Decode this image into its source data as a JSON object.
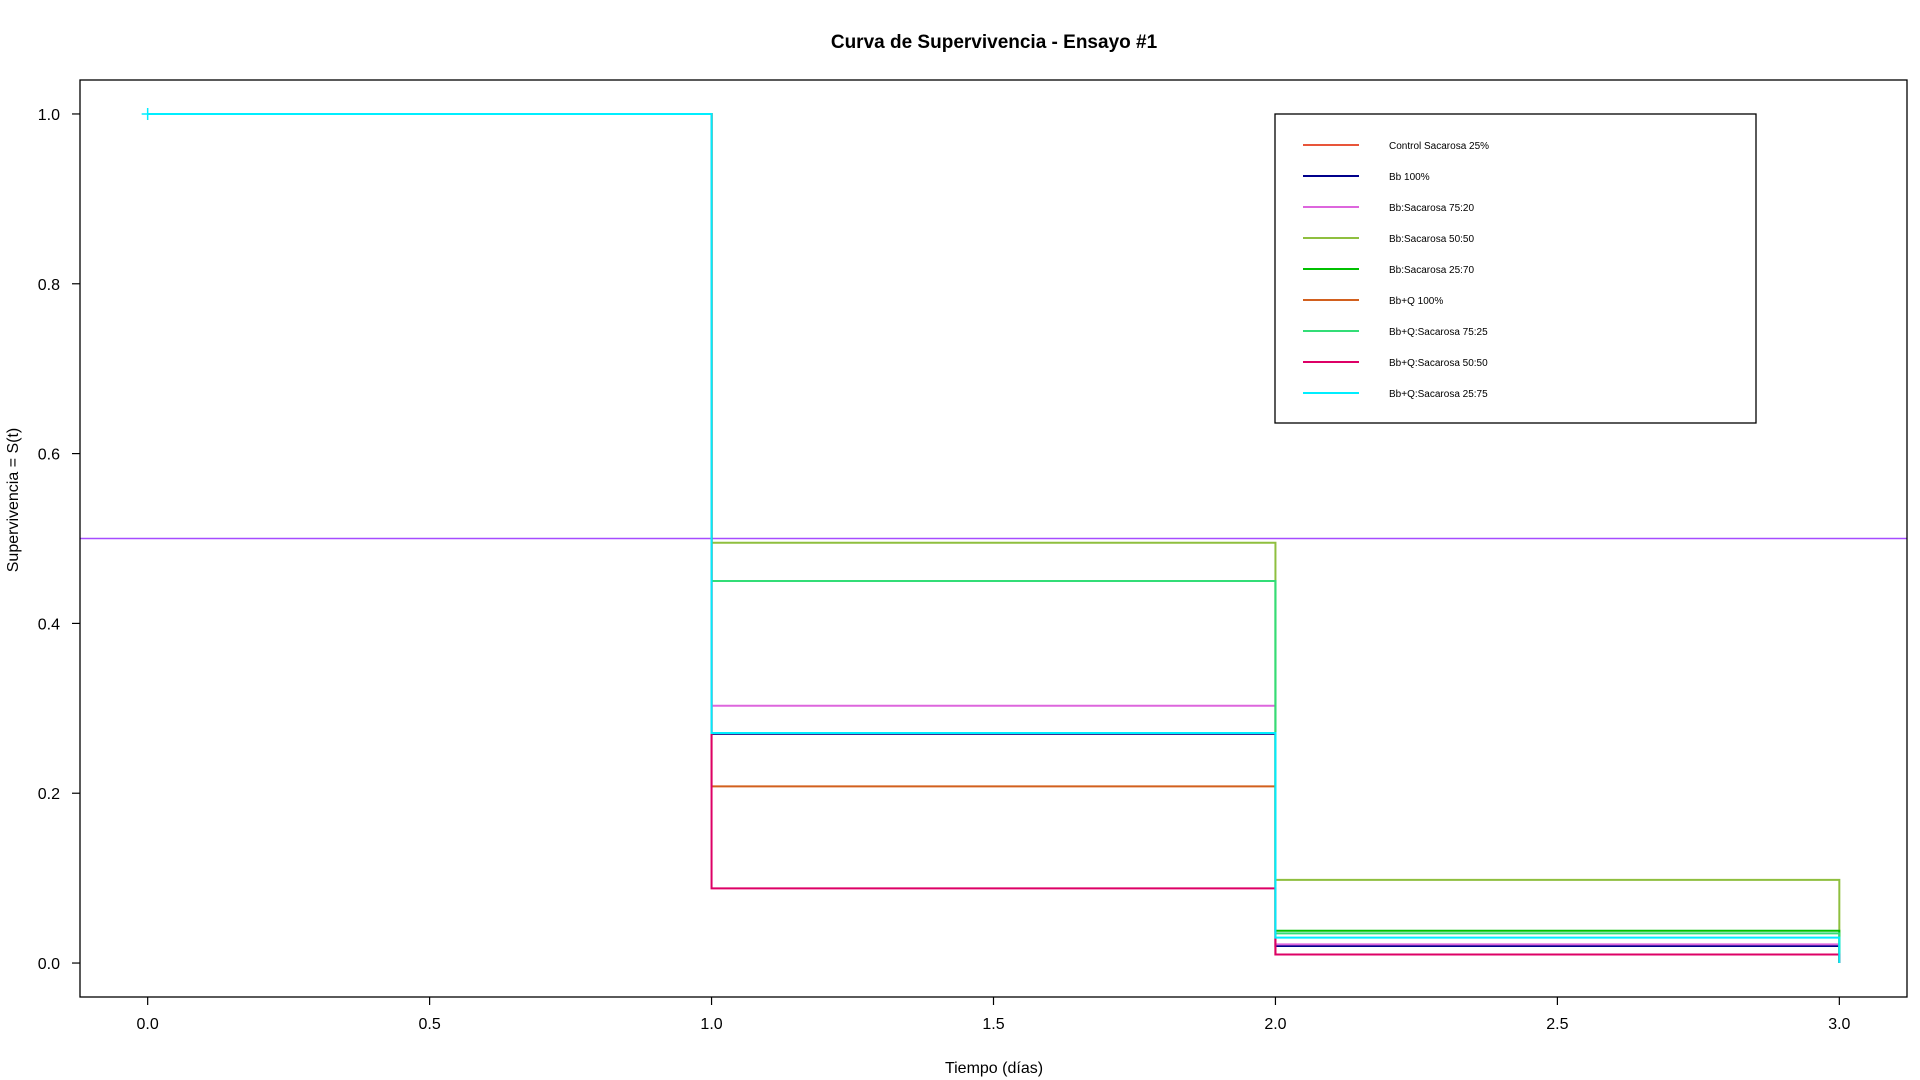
{
  "chart_data": {
    "type": "line",
    "step": true,
    "title": "Curva de Supervivencia - Ensayo #1",
    "xlabel": "Tiempo (días)",
    "ylabel": "Supervivencia = S(t)",
    "xlim": [
      -0.12,
      3.12
    ],
    "ylim": [
      -0.04,
      1.04
    ],
    "xticks": [
      0.0,
      0.5,
      1.0,
      1.5,
      2.0,
      2.5,
      3.0
    ],
    "xtick_labels": [
      "0.0",
      "0.5",
      "1.0",
      "1.5",
      "2.0",
      "2.5",
      "3.0"
    ],
    "yticks": [
      0.0,
      0.2,
      0.4,
      0.6,
      0.8,
      1.0
    ],
    "ytick_labels": [
      "0.0",
      "0.2",
      "0.4",
      "0.6",
      "0.8",
      "1.0"
    ],
    "grid": false,
    "legend_position": "top-right",
    "reference_line": {
      "y": 0.5,
      "color": "#a64dff"
    },
    "series": [
      {
        "name": "Control  Sacarosa 25%",
        "color": "#e8553a",
        "x": [
          0,
          1,
          2,
          3
        ],
        "y": [
          1.0,
          0.27,
          0.01,
          0.01
        ]
      },
      {
        "name": "Bb 100%",
        "color": "#00008b",
        "x": [
          0,
          1,
          2,
          3
        ],
        "y": [
          1.0,
          0.27,
          0.02,
          0.0
        ]
      },
      {
        "name": "Bb:Sacarosa 75:20",
        "color": "#dd66dd",
        "x": [
          0,
          1,
          2,
          3
        ],
        "y": [
          1.0,
          0.303,
          0.022,
          0.0
        ]
      },
      {
        "name": "Bb:Sacarosa 50:50",
        "color": "#8fbf3f",
        "x": [
          0,
          1,
          2,
          3
        ],
        "y": [
          1.0,
          0.495,
          0.098,
          0.0
        ]
      },
      {
        "name": "Bb:Sacarosa 25:70",
        "color": "#00c000",
        "x": [
          0,
          1,
          2,
          3
        ],
        "y": [
          1.0,
          0.45,
          0.038,
          0.0
        ]
      },
      {
        "name": "Bb+Q 100%",
        "color": "#d2601e",
        "x": [
          0,
          1,
          2,
          3
        ],
        "y": [
          1.0,
          0.208,
          0.01,
          0.01
        ]
      },
      {
        "name": "Bb+Q:Sacarosa 75:25",
        "color": "#33dd77",
        "x": [
          0,
          1,
          2,
          3
        ],
        "y": [
          1.0,
          0.45,
          0.035,
          0.0
        ]
      },
      {
        "name": "Bb+Q:Sacarosa 50:50",
        "color": "#dd0066",
        "x": [
          0,
          1,
          2,
          3
        ],
        "y": [
          1.0,
          0.088,
          0.01,
          0.0
        ]
      },
      {
        "name": "Bb+Q:Sacarosa 25:75",
        "color": "#00eeff",
        "x": [
          0,
          1,
          2,
          3
        ],
        "y": [
          1.0,
          0.271,
          0.03,
          0.0
        ]
      }
    ]
  }
}
